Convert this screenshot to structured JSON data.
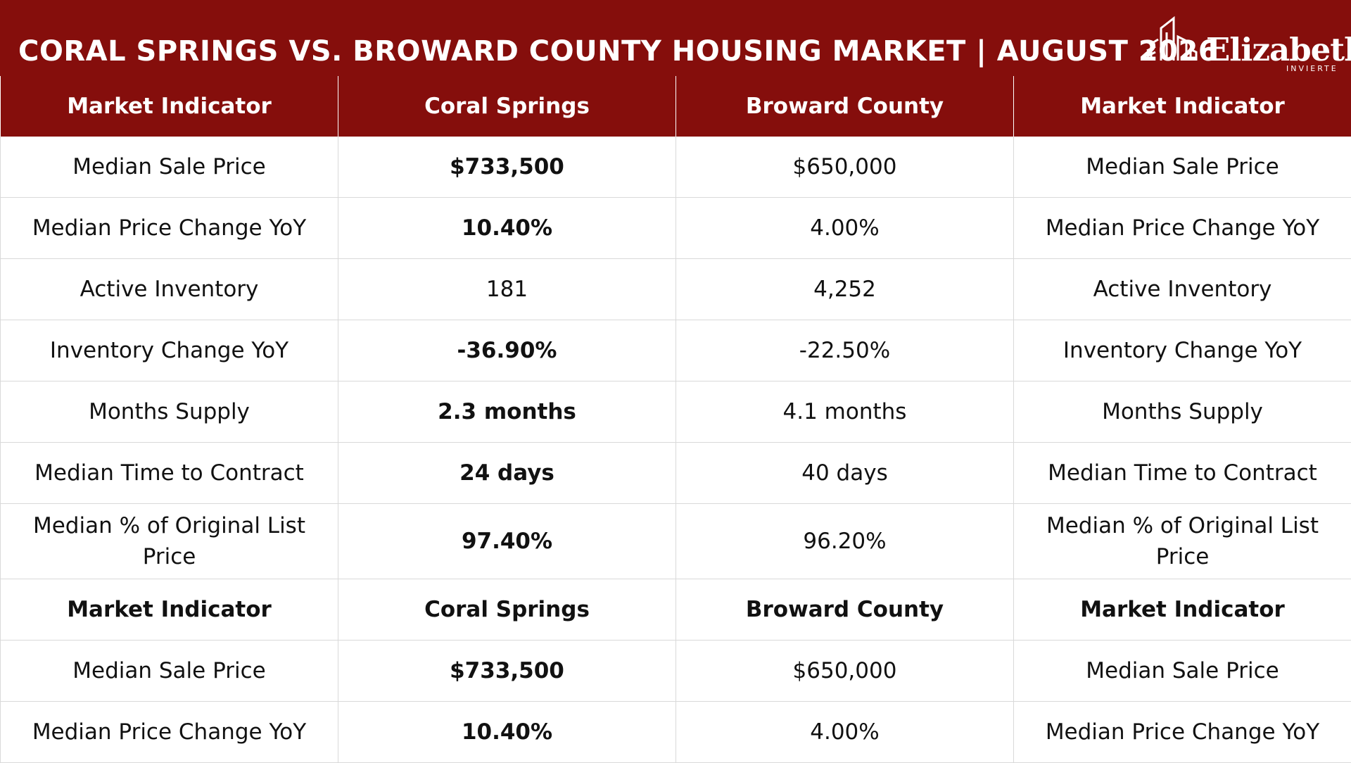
{
  "header": {
    "title": "CORAL SPRINGS VS. BROWARD COUNTY HOUSING MARKET | AUGUST 2026",
    "logo_name": "Elizabeth",
    "logo_tagline": "INVIERTE",
    "logo_icon": "building-skyline-icon",
    "background_color": "#850e0c"
  },
  "table": {
    "columns": [
      "Market Indicator",
      "Coral Springs",
      "Broward County",
      "Market Indicator"
    ],
    "rows": [
      {
        "indicator": "Median Sale Price",
        "coral": "$733,500",
        "broward": "$650,000",
        "indicator2": "Median Sale Price"
      },
      {
        "indicator": "Median Price Change YoY",
        "coral": "10.40%",
        "broward": "4.00%",
        "indicator2": "Median Price Change YoY"
      },
      {
        "indicator": "Active Inventory",
        "coral": "181",
        "broward": "4,252",
        "indicator2": "Active Inventory"
      },
      {
        "indicator": "Inventory Change YoY",
        "coral": "-36.90%",
        "broward": "-22.50%",
        "indicator2": "Inventory Change YoY"
      },
      {
        "indicator": "Months Supply",
        "coral": "2.3 months",
        "broward": "4.1 months",
        "indicator2": "Months Supply"
      },
      {
        "indicator": "Median Time to Contract",
        "coral": "24 days",
        "broward": "40 days",
        "indicator2": "Median Time to Contract"
      },
      {
        "indicator": "Median % of Original List Price",
        "coral": "97.40%",
        "broward": "96.20%",
        "indicator2": "Median % of Original List Price"
      },
      {
        "indicator": "Market Indicator",
        "coral": "Coral Springs",
        "broward": "Broward County",
        "indicator2": "Market Indicator"
      },
      {
        "indicator": "Median Sale Price",
        "coral": "$733,500",
        "broward": "$650,000",
        "indicator2": "Median Sale Price"
      },
      {
        "indicator": "Median Price Change YoY",
        "coral": "10.40%",
        "broward": "4.00%",
        "indicator2": "Median Price Change YoY"
      }
    ]
  }
}
